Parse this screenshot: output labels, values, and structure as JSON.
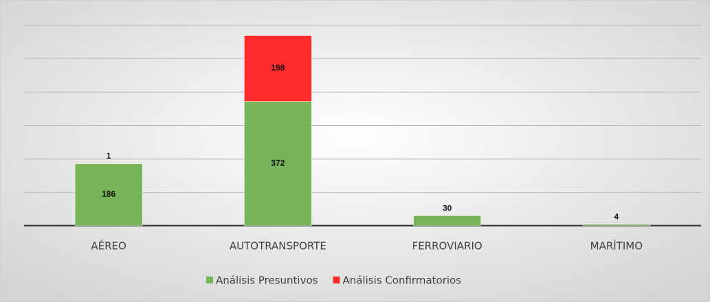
{
  "chart_data": {
    "type": "stacked_bar",
    "categories": [
      "AÉREO",
      "AUTOTRANSPORTE",
      "FERROVIARIO",
      "MARÍTIMO"
    ],
    "series": [
      {
        "name": "Análisis Presuntivos",
        "color": "#78b55a",
        "values": [
          186,
          372,
          30,
          4
        ]
      },
      {
        "name": "Análisis Confirmatorios",
        "color": "#ff2b2b",
        "values": [
          1,
          198,
          null,
          null
        ]
      }
    ],
    "ylim": [
      0,
      600
    ],
    "yticks": [
      0,
      100,
      200,
      300,
      400,
      500,
      600
    ],
    "grid": true
  }
}
